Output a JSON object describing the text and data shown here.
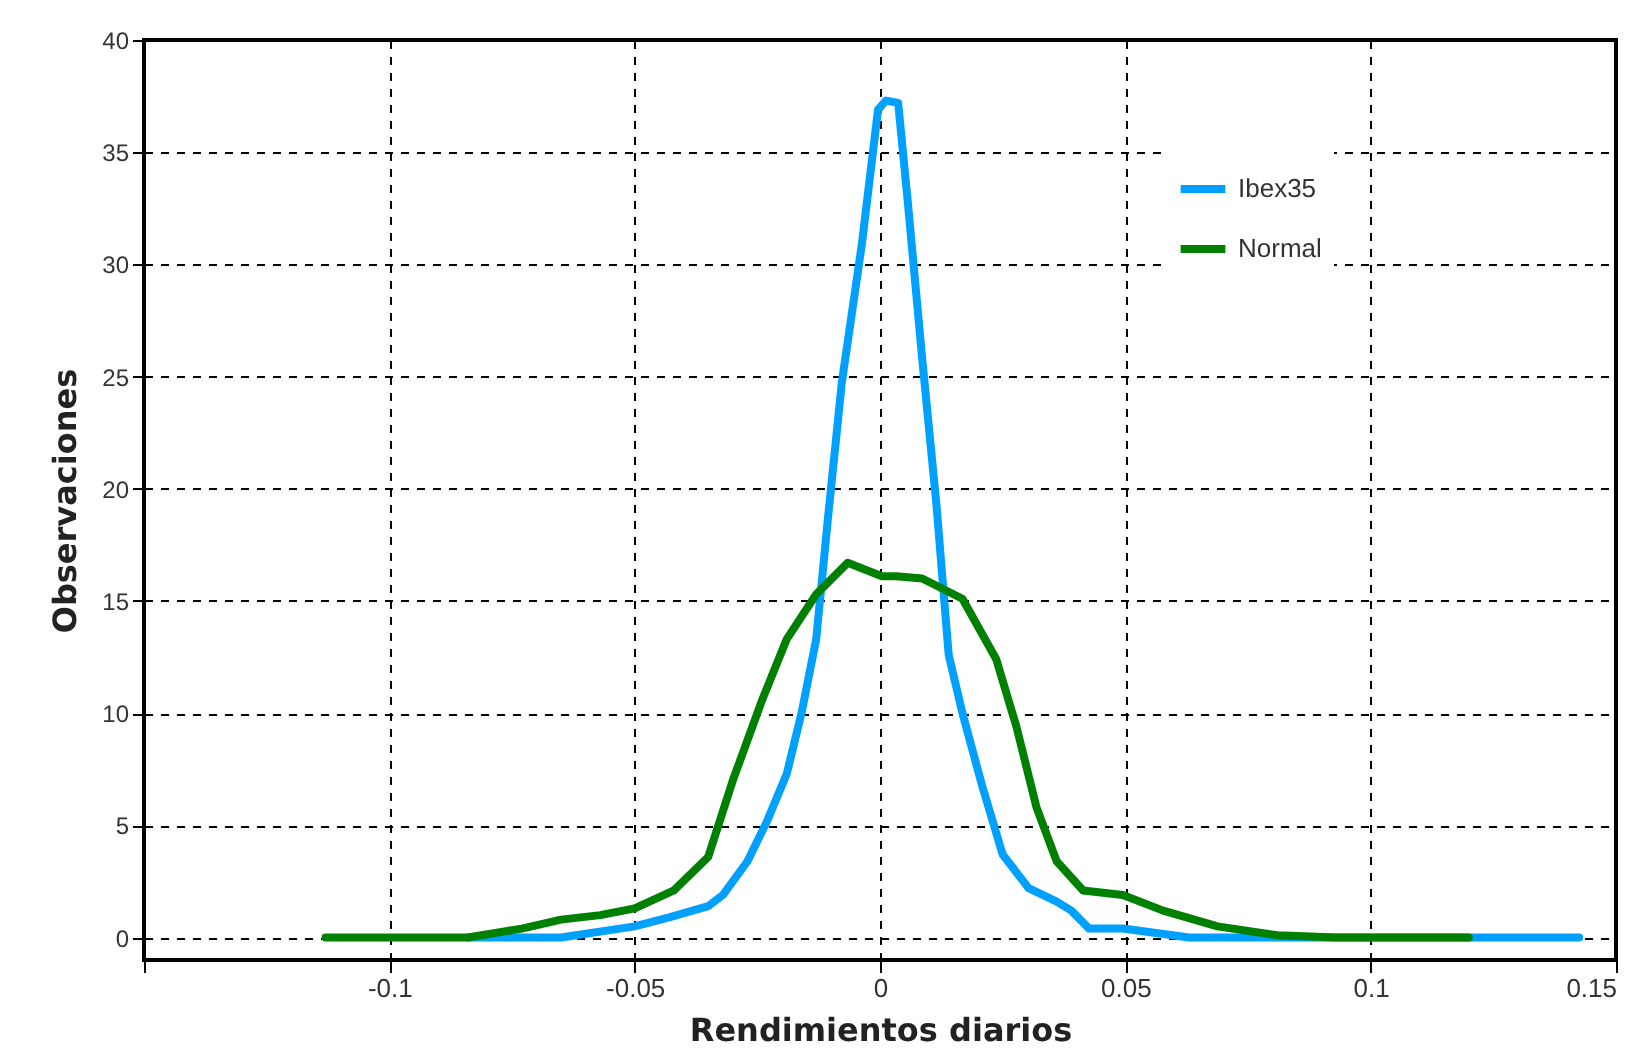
{
  "chart_data": {
    "type": "line",
    "xlabel": "Rendimientos diarios",
    "ylabel": "Observaciones",
    "xlim": [
      -0.15,
      0.15
    ],
    "xticks": [
      {
        "value": -0.15,
        "label": null
      },
      -0.1,
      -0.05,
      0,
      0.05,
      0.1,
      0.15
    ],
    "ylim": [
      -1,
      40
    ],
    "yticks": [
      0,
      5,
      10,
      15,
      20,
      25,
      30,
      35,
      40
    ],
    "grid": true,
    "legend": "top right",
    "line_style": "solid",
    "marker": "none",
    "series": [
      {
        "name": "Ibex35",
        "color": "#00a0ff",
        "x": [
          -0.084,
          -0.065,
          -0.05,
          -0.043,
          -0.035,
          -0.032,
          -0.027,
          -0.023,
          -0.019,
          -0.016,
          -0.013,
          -0.0106,
          -0.0078,
          -0.0037,
          -0.0004,
          0.0012,
          0.0037,
          0.0057,
          0.0086,
          0.0115,
          0.014,
          0.0168,
          0.0209,
          0.025,
          0.0303,
          0.036,
          0.039,
          0.0426,
          0.0495,
          0.063,
          0.1425
        ],
        "values": [
          0,
          0,
          0.5,
          0.9,
          1.4,
          1.9,
          3.4,
          5.2,
          7.3,
          10,
          13.3,
          18.7,
          24.7,
          30.9,
          36.9,
          37.3,
          37.2,
          32.7,
          25.8,
          19.3,
          12.6,
          10,
          6.7,
          3.7,
          2.2,
          1.6,
          1.2,
          0.4,
          0.4,
          0,
          0
        ]
      },
      {
        "name": "Normal",
        "color": "#008000",
        "x": [
          -0.113,
          -0.084,
          -0.073,
          -0.065,
          -0.057,
          -0.05,
          -0.042,
          -0.035,
          -0.03,
          -0.024,
          -0.019,
          -0.013,
          -0.0066,
          0.0004,
          0.0033,
          0.0086,
          0.0168,
          0.0237,
          0.0278,
          0.0319,
          0.036,
          0.0414,
          0.0495,
          0.0577,
          0.0688,
          0.081,
          0.093,
          0.12
        ],
        "values": [
          0,
          0,
          0.4,
          0.8,
          1.0,
          1.3,
          2.1,
          3.6,
          7.0,
          10.6,
          13.3,
          15.3,
          16.7,
          16.1,
          16.1,
          16.0,
          15.1,
          12.4,
          9.4,
          5.8,
          3.4,
          2.1,
          1.9,
          1.2,
          0.5,
          0.1,
          0,
          0
        ]
      }
    ]
  }
}
